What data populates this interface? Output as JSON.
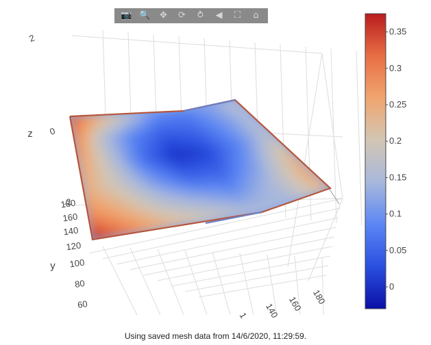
{
  "toolbar": {
    "buttons": [
      {
        "name": "camera-icon",
        "glyph": "📷"
      },
      {
        "name": "zoom-icon",
        "glyph": "🔍"
      },
      {
        "name": "pan-icon",
        "glyph": "✥"
      },
      {
        "name": "orbit-rotation-icon",
        "glyph": "⟳"
      },
      {
        "name": "turntable-rotation-icon",
        "glyph": "⥁"
      },
      {
        "name": "reset-camera-icon",
        "glyph": "◀"
      },
      {
        "name": "reset-last-view-icon",
        "glyph": "⛶"
      },
      {
        "name": "home-icon",
        "glyph": "⌂"
      }
    ]
  },
  "caption": "Using saved mesh data from 14/6/2020, 11:29:59.",
  "chart_data": {
    "type": "surface",
    "x_axis": {
      "title": "",
      "ticks": [
        "1",
        "140",
        "160",
        "180"
      ]
    },
    "y_axis": {
      "title": "y",
      "ticks": [
        "60",
        "80",
        "100",
        "120",
        "140",
        "160",
        "180"
      ]
    },
    "z_axis": {
      "title": "z",
      "ticks": [
        "-2",
        "0",
        "2"
      ]
    },
    "colorscale": [
      "#0a0fa6",
      "#2a4fe0",
      "#5b86f4",
      "#a8b8dc",
      "#d3c6b4",
      "#f0a56f",
      "#e86e45",
      "#b81d1f"
    ],
    "colorbar": {
      "ticks": [
        "0",
        "0.05",
        "0.1",
        "0.15",
        "0.2",
        "0.25",
        "0.3",
        "0.35"
      ],
      "min": -0.03,
      "max": 0.375
    },
    "surface_values": [
      [
        0.33,
        0.26,
        0.18,
        0.1,
        0.08,
        0.12,
        0.17
      ],
      [
        0.3,
        0.15,
        0.08,
        0.04,
        0.05,
        0.1,
        0.16
      ],
      [
        0.27,
        0.17,
        0.06,
        0.0,
        0.02,
        0.09,
        0.18
      ],
      [
        0.25,
        0.19,
        0.11,
        0.05,
        0.05,
        0.12,
        0.24
      ],
      [
        0.29,
        0.24,
        0.17,
        0.13,
        0.1,
        0.15,
        0.26
      ],
      [
        0.37,
        0.3,
        0.24,
        0.2,
        0.16,
        0.14,
        0.24
      ]
    ]
  }
}
